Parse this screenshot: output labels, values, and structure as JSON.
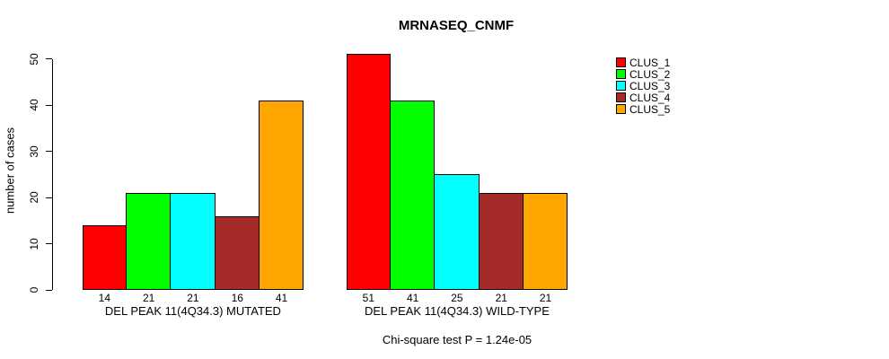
{
  "title": "MRNASEQ_CNMF",
  "footer": "Chi-square test P = 1.24e-05",
  "y_axis": {
    "label": "number of cases",
    "ticks": [
      0,
      10,
      20,
      30,
      40,
      50
    ]
  },
  "legend": {
    "items": [
      {
        "label": "CLUS_1",
        "color": "#FF0000"
      },
      {
        "label": "CLUS_2",
        "color": "#00FF00"
      },
      {
        "label": "CLUS_3",
        "color": "#00FFFF"
      },
      {
        "label": "CLUS_4",
        "color": "#A52A2A"
      },
      {
        "label": "CLUS_5",
        "color": "#FFA500"
      }
    ]
  },
  "chart_data": {
    "type": "bar",
    "title": "MRNASEQ_CNMF",
    "xlabel": "",
    "ylabel": "number of cases",
    "ylim": [
      0,
      50
    ],
    "yticks": [
      0,
      10,
      20,
      30,
      40,
      50
    ],
    "grid": false,
    "legend_position": "right-outside",
    "series": [
      "CLUS_1",
      "CLUS_2",
      "CLUS_3",
      "CLUS_4",
      "CLUS_5"
    ],
    "colors": [
      "#FF0000",
      "#00FF00",
      "#00FFFF",
      "#A52A2A",
      "#FFA500"
    ],
    "groups": [
      {
        "label": "DEL PEAK 11(4Q34.3) MUTATED",
        "values": [
          14,
          21,
          21,
          16,
          41
        ]
      },
      {
        "label": "DEL PEAK 11(4Q34.3) WILD-TYPE",
        "values": [
          51,
          41,
          25,
          21,
          21
        ]
      }
    ],
    "annotation": "Chi-square test P = 1.24e-05"
  }
}
